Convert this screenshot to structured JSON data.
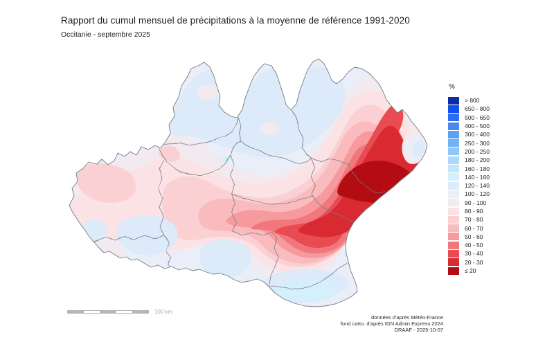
{
  "header": {
    "title": "Rapport du cumul mensuel de précipitations à la moyenne de référence 1991-2020",
    "subtitle": "Occitanie - septembre 2025"
  },
  "legend": {
    "unit": "%",
    "entries": [
      {
        "label": "> 800",
        "color": "#0a2da6"
      },
      {
        "label": "650 - 800",
        "color": "#1150ee"
      },
      {
        "label": "500 - 650",
        "color": "#2e6cf3"
      },
      {
        "label": "400 - 500",
        "color": "#4a87f3"
      },
      {
        "label": "300 - 400",
        "color": "#57a2f7"
      },
      {
        "label": "250 - 300",
        "color": "#70b3f7"
      },
      {
        "label": "200 - 250",
        "color": "#8cc8fa"
      },
      {
        "label": "180 - 200",
        "color": "#aadafb"
      },
      {
        "label": "160 - 180",
        "color": "#c3e6fc"
      },
      {
        "label": "140 - 160",
        "color": "#d4f0fd"
      },
      {
        "label": "120 - 140",
        "color": "#dceafa"
      },
      {
        "label": "100 - 120",
        "color": "#eaeef8"
      },
      {
        "label": "90 - 100",
        "color": "#f2eaee"
      },
      {
        "label": "80 - 90",
        "color": "#fae2e5"
      },
      {
        "label": "70 - 80",
        "color": "#fbd0d3"
      },
      {
        "label": "60 - 70",
        "color": "#f9bbbe"
      },
      {
        "label": "50 - 60",
        "color": "#f79a9e"
      },
      {
        "label": "40 - 50",
        "color": "#f1777c"
      },
      {
        "label": "30 - 40",
        "color": "#e84b51"
      },
      {
        "label": "20 - 30",
        "color": "#da2a31"
      },
      {
        "label": "≤ 20",
        "color": "#b30d13"
      }
    ]
  },
  "map": {
    "region": "Occitanie",
    "outline_color": "#757a82",
    "border_color": "#757a82",
    "sea_color": "#ffffff"
  },
  "scalebar": {
    "label": "100 km"
  },
  "credits": {
    "line1": "données d'après Météo-France",
    "line2": "fond carto. d'après IGN Admin Express 2024",
    "line3": "DRAAF - 2025-10-07"
  }
}
